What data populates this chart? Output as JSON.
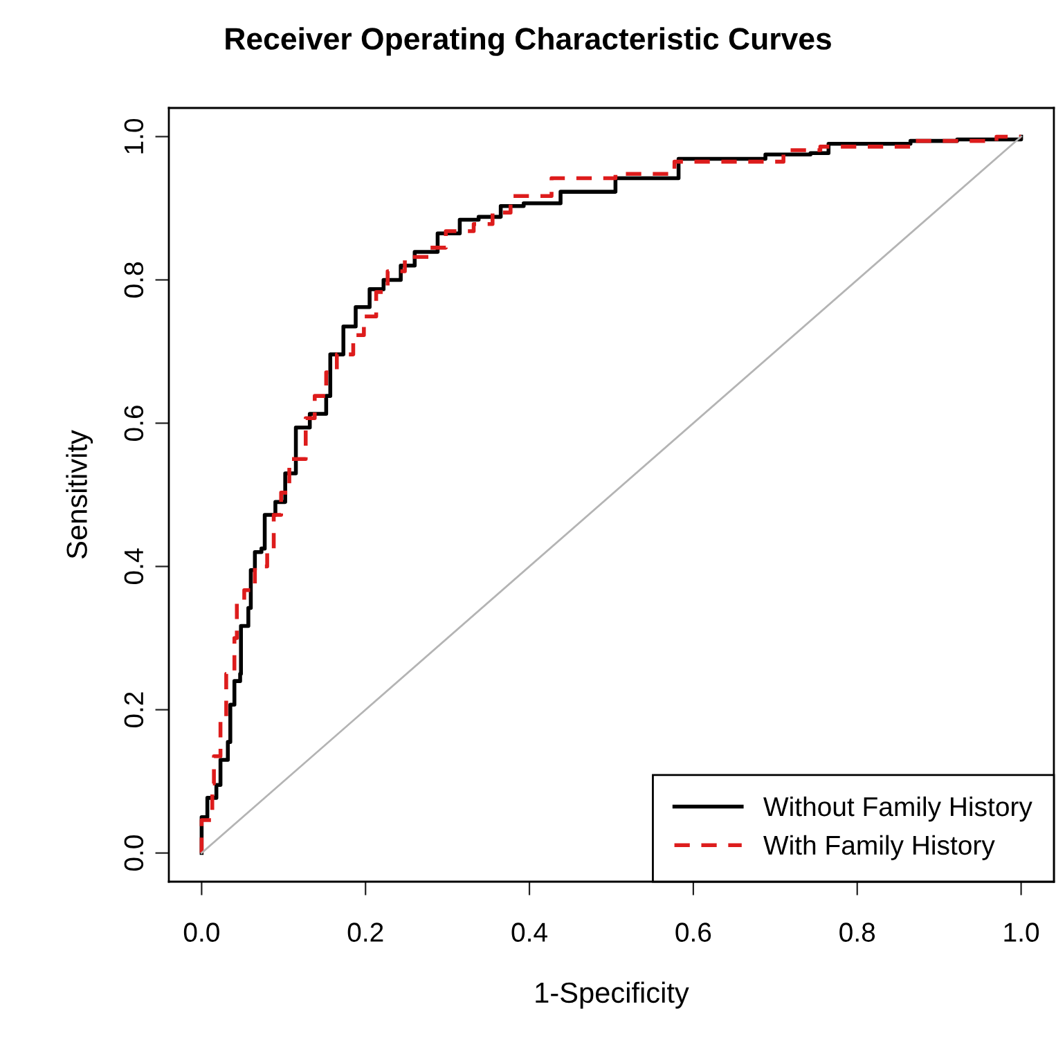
{
  "chart_data": {
    "type": "line",
    "title": "Receiver Operating Characteristic Curves",
    "xlabel": "1-Specificity",
    "ylabel": "Sensitivity",
    "xlim": [
      -0.04,
      1.04
    ],
    "ylim": [
      -0.04,
      1.04
    ],
    "xticks": [
      {
        "value": 0,
        "label": "0.0"
      },
      {
        "value": 0.2,
        "label": "0.2"
      },
      {
        "value": 0.4,
        "label": "0.4"
      },
      {
        "value": 0.6,
        "label": "0.6"
      },
      {
        "value": 0.8,
        "label": "0.8"
      },
      {
        "value": 1,
        "label": "1.0"
      }
    ],
    "yticks": [
      {
        "value": 0,
        "label": "0.0"
      },
      {
        "value": 0.2,
        "label": "0.2"
      },
      {
        "value": 0.4,
        "label": "0.4"
      },
      {
        "value": 0.6,
        "label": "0.6"
      },
      {
        "value": 0.8,
        "label": "0.8"
      },
      {
        "value": 1,
        "label": "1.0"
      }
    ],
    "grid": false,
    "legend": "bottom right",
    "marker": "none",
    "series": [
      {
        "name": "Without Family History",
        "color": "#000000",
        "line_style": "solid",
        "type": "step",
        "x": [
          0,
          0,
          0.007,
          0.018,
          0.023,
          0.032,
          0.035,
          0.04,
          0.047,
          0.048,
          0.057,
          0.06,
          0.065,
          0.073,
          0.077,
          0.09,
          0.102,
          0.115,
          0.132,
          0.152,
          0.157,
          0.173,
          0.188,
          0.205,
          0.222,
          0.243,
          0.26,
          0.288,
          0.315,
          0.338,
          0.365,
          0.393,
          0.438,
          0.505,
          0.582,
          0.688,
          0.743,
          0.765,
          0.865,
          0.922,
          1.0
        ],
        "values": [
          0,
          0.05,
          0.077,
          0.095,
          0.13,
          0.155,
          0.207,
          0.24,
          0.25,
          0.317,
          0.342,
          0.395,
          0.42,
          0.425,
          0.472,
          0.49,
          0.53,
          0.594,
          0.613,
          0.638,
          0.696,
          0.735,
          0.762,
          0.787,
          0.8,
          0.82,
          0.839,
          0.865,
          0.884,
          0.888,
          0.903,
          0.907,
          0.923,
          0.942,
          0.969,
          0.975,
          0.977,
          0.99,
          0.994,
          0.996,
          1.0
        ]
      },
      {
        "name": "With Family History",
        "color": "#dd1c1c",
        "line_style": "dashed",
        "type": "step",
        "x": [
          0,
          0,
          0.013,
          0.015,
          0.023,
          0.03,
          0.04,
          0.043,
          0.052,
          0.065,
          0.08,
          0.088,
          0.097,
          0.107,
          0.127,
          0.138,
          0.152,
          0.165,
          0.185,
          0.198,
          0.213,
          0.227,
          0.248,
          0.277,
          0.298,
          0.332,
          0.355,
          0.377,
          0.427,
          0.505,
          0.577,
          0.71,
          0.755,
          0.865,
          0.97,
          1.0
        ],
        "values": [
          0,
          0.046,
          0.097,
          0.135,
          0.188,
          0.25,
          0.3,
          0.348,
          0.367,
          0.4,
          0.425,
          0.472,
          0.503,
          0.55,
          0.607,
          0.638,
          0.671,
          0.696,
          0.723,
          0.749,
          0.783,
          0.812,
          0.832,
          0.845,
          0.868,
          0.878,
          0.894,
          0.917,
          0.942,
          0.948,
          0.965,
          0.981,
          0.986,
          0.994,
          1.0,
          1.0
        ]
      },
      {
        "color": "#b4b4b4",
        "line_style": "solid",
        "x": [
          0,
          1
        ],
        "values": [
          0,
          1
        ]
      }
    ]
  }
}
